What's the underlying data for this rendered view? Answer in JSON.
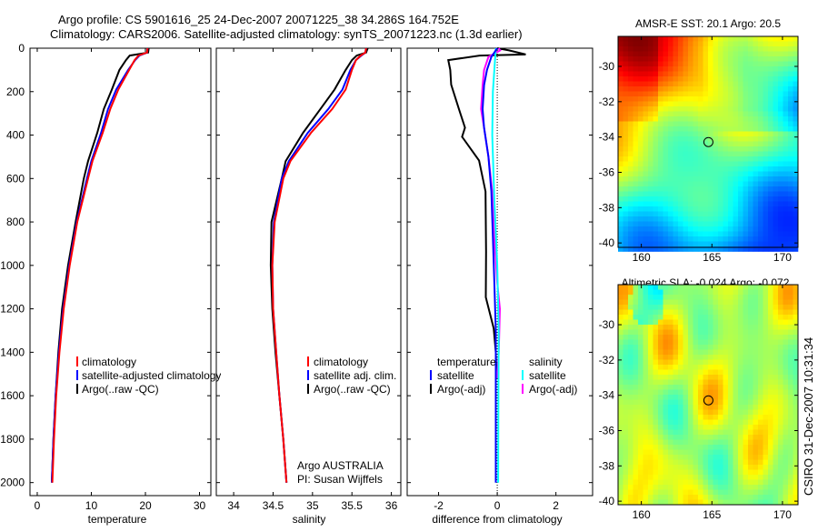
{
  "title": {
    "line1": "Argo profile: CS 5901616_25 24-Dec-2007 20071225_38 34.286S 164.752E",
    "line2": "Climatology: CARS2006. Satellite-adjusted climatology: synTS_20071223.nc (1.3d earlier)"
  },
  "side_label": "CSIRO 31-Dec-2007 10:31:34",
  "chart_data": [
    {
      "type": "line",
      "xlabel": "temperature",
      "ylabel": "",
      "xlim": [
        -1.34,
        32.1
      ],
      "ylim": [
        0,
        2060
      ],
      "y_reversed": true,
      "xticks": [
        0,
        10,
        20,
        30
      ],
      "yticks": [
        0,
        200,
        400,
        600,
        800,
        1000,
        1200,
        1400,
        1600,
        1800,
        2000
      ],
      "depth": [
        0,
        20,
        34,
        55,
        100,
        190,
        280,
        390,
        520,
        600,
        800,
        1000,
        1200,
        1400,
        1600,
        1800,
        2000
      ],
      "series": [
        {
          "name": "climatology",
          "color": "#ff0000",
          "values": [
            20.4,
            20.3,
            18.7,
            18.0,
            17.0,
            15.0,
            13.5,
            12.1,
            10.2,
            9.4,
            7.4,
            6.0,
            4.9,
            4.1,
            3.5,
            3.1,
            2.8
          ]
        },
        {
          "name": "satellite-adjusted climatology",
          "color": "#0000ff",
          "values": [
            20.4,
            20.3,
            18.9,
            18.1,
            16.8,
            14.6,
            13.1,
            11.8,
            10.0,
            9.2,
            7.3,
            5.9,
            4.8,
            4.0,
            3.4,
            3.0,
            2.7
          ]
        },
        {
          "name": "Argo(..raw -QC)",
          "color": "#000000",
          "values": [
            20.6,
            20.5,
            17.1,
            16.4,
            15.2,
            13.8,
            12.3,
            11.1,
            9.4,
            8.6,
            7.1,
            5.7,
            4.6,
            3.9,
            3.4,
            3.0,
            2.7
          ]
        }
      ],
      "legend": "bottom-right"
    },
    {
      "type": "line",
      "xlabel": "salinity",
      "xlim": [
        33.78,
        36.12
      ],
      "ylim": [
        0,
        2060
      ],
      "y_reversed": true,
      "xticks": [
        34,
        34.5,
        35,
        35.5,
        36
      ],
      "depth": [
        0,
        20,
        34,
        55,
        100,
        190,
        280,
        390,
        520,
        600,
        800,
        1000,
        1200,
        1400,
        1600,
        1800,
        2000
      ],
      "series": [
        {
          "name": "climatology",
          "color": "#ff0000",
          "values": [
            35.68,
            35.67,
            35.61,
            35.55,
            35.5,
            35.42,
            35.25,
            34.98,
            34.72,
            34.63,
            34.52,
            34.49,
            34.5,
            34.54,
            34.58,
            34.63,
            34.67
          ]
        },
        {
          "name": "satellite adj. clim.",
          "color": "#0000ff",
          "values": [
            35.68,
            35.67,
            35.62,
            35.55,
            35.48,
            35.38,
            35.2,
            34.94,
            34.7,
            34.61,
            34.51,
            34.49,
            34.5,
            34.54,
            34.58,
            34.63,
            34.67
          ]
        },
        {
          "name": "Argo(..raw -QC)",
          "color": "#000000",
          "values": [
            35.7,
            35.68,
            35.56,
            35.5,
            35.42,
            35.28,
            35.1,
            34.88,
            34.66,
            34.61,
            34.48,
            34.47,
            34.49,
            34.53,
            34.58,
            34.63,
            34.67
          ]
        }
      ],
      "annotations": [
        "Argo AUSTRALIA",
        "PI: Susan Wijffels"
      ],
      "legend": "bottom-right"
    },
    {
      "type": "line",
      "xlabel": "difference from climatology",
      "xlim": [
        -3.07,
        3.25
      ],
      "ylim": [
        0,
        2060
      ],
      "y_reversed": true,
      "xticks": [
        -2,
        0,
        2
      ],
      "zero_line": "dotted",
      "legend_headers": [
        "temperature",
        "salinity"
      ],
      "series": [
        {
          "name": "satellite",
          "group": "temperature",
          "color": "#0000ff",
          "depth": [
            0,
            40,
            100,
            170,
            280,
            366,
            500,
            660,
            870,
            1080,
            1300,
            1600,
            2000
          ],
          "values": [
            0,
            -0.2,
            -0.35,
            -0.45,
            -0.5,
            -0.45,
            -0.3,
            -0.2,
            -0.15,
            -0.1,
            -0.05,
            -0.05,
            -0.05
          ]
        },
        {
          "name": "Argo(-adj)",
          "group": "temperature",
          "color": "#000000",
          "depth": [
            0,
            10,
            29,
            34,
            55,
            100,
            168,
            282,
            366,
            408,
            517,
            660,
            937,
            1147,
            1290,
            1400,
            1520
          ],
          "values": [
            0,
            0.4,
            0.97,
            -0.6,
            -1.67,
            -1.6,
            -1.57,
            -1.3,
            -1.1,
            -1.2,
            -0.62,
            -0.4,
            -0.38,
            -0.39,
            -0.12,
            -0.05,
            -0.02
          ]
        },
        {
          "name": "satellite",
          "group": "salinity",
          "color": "#00ffff",
          "depth": [
            0,
            200,
            400,
            700,
            1000,
            1300,
            1600,
            2000
          ],
          "values": [
            -0.05,
            -0.15,
            -0.17,
            -0.1,
            0.0,
            0.05,
            0.04,
            0.03
          ]
        },
        {
          "name": "Argo(-adj)",
          "group": "salinity",
          "color": "#ff00ff",
          "depth": [
            0,
            10,
            40,
            100,
            170,
            280,
            366,
            500,
            660,
            870,
            1080,
            1200,
            1400,
            1520
          ],
          "values": [
            0.05,
            0.1,
            -0.3,
            -0.45,
            -0.5,
            -0.55,
            -0.45,
            -0.3,
            -0.17,
            -0.1,
            0.0,
            0.09,
            0.05,
            0.0
          ]
        }
      ]
    },
    {
      "type": "heatmap",
      "title": "AMSR-E SST: 20.1 Argo: 20.5",
      "xlim": [
        158.35,
        171.1
      ],
      "ylim": [
        -40.25,
        -28.3
      ],
      "xticks": [
        160,
        165,
        170
      ],
      "yticks": [
        -30,
        -32,
        -34,
        -36,
        -38,
        -40
      ],
      "field": "sst",
      "marker": {
        "lon": 164.752,
        "lat": -34.286
      }
    },
    {
      "type": "heatmap",
      "title": "Altimetric SLA: -0.024 Argo: -0.072",
      "xlim": [
        158.35,
        171.1
      ],
      "ylim": [
        -40.2,
        -27.73
      ],
      "xticks": [
        160,
        165,
        170
      ],
      "yticks": [
        -30,
        -32,
        -34,
        -36,
        -38,
        -40
      ],
      "field": "sla",
      "marker": {
        "lon": 164.752,
        "lat": -34.286
      }
    }
  ]
}
